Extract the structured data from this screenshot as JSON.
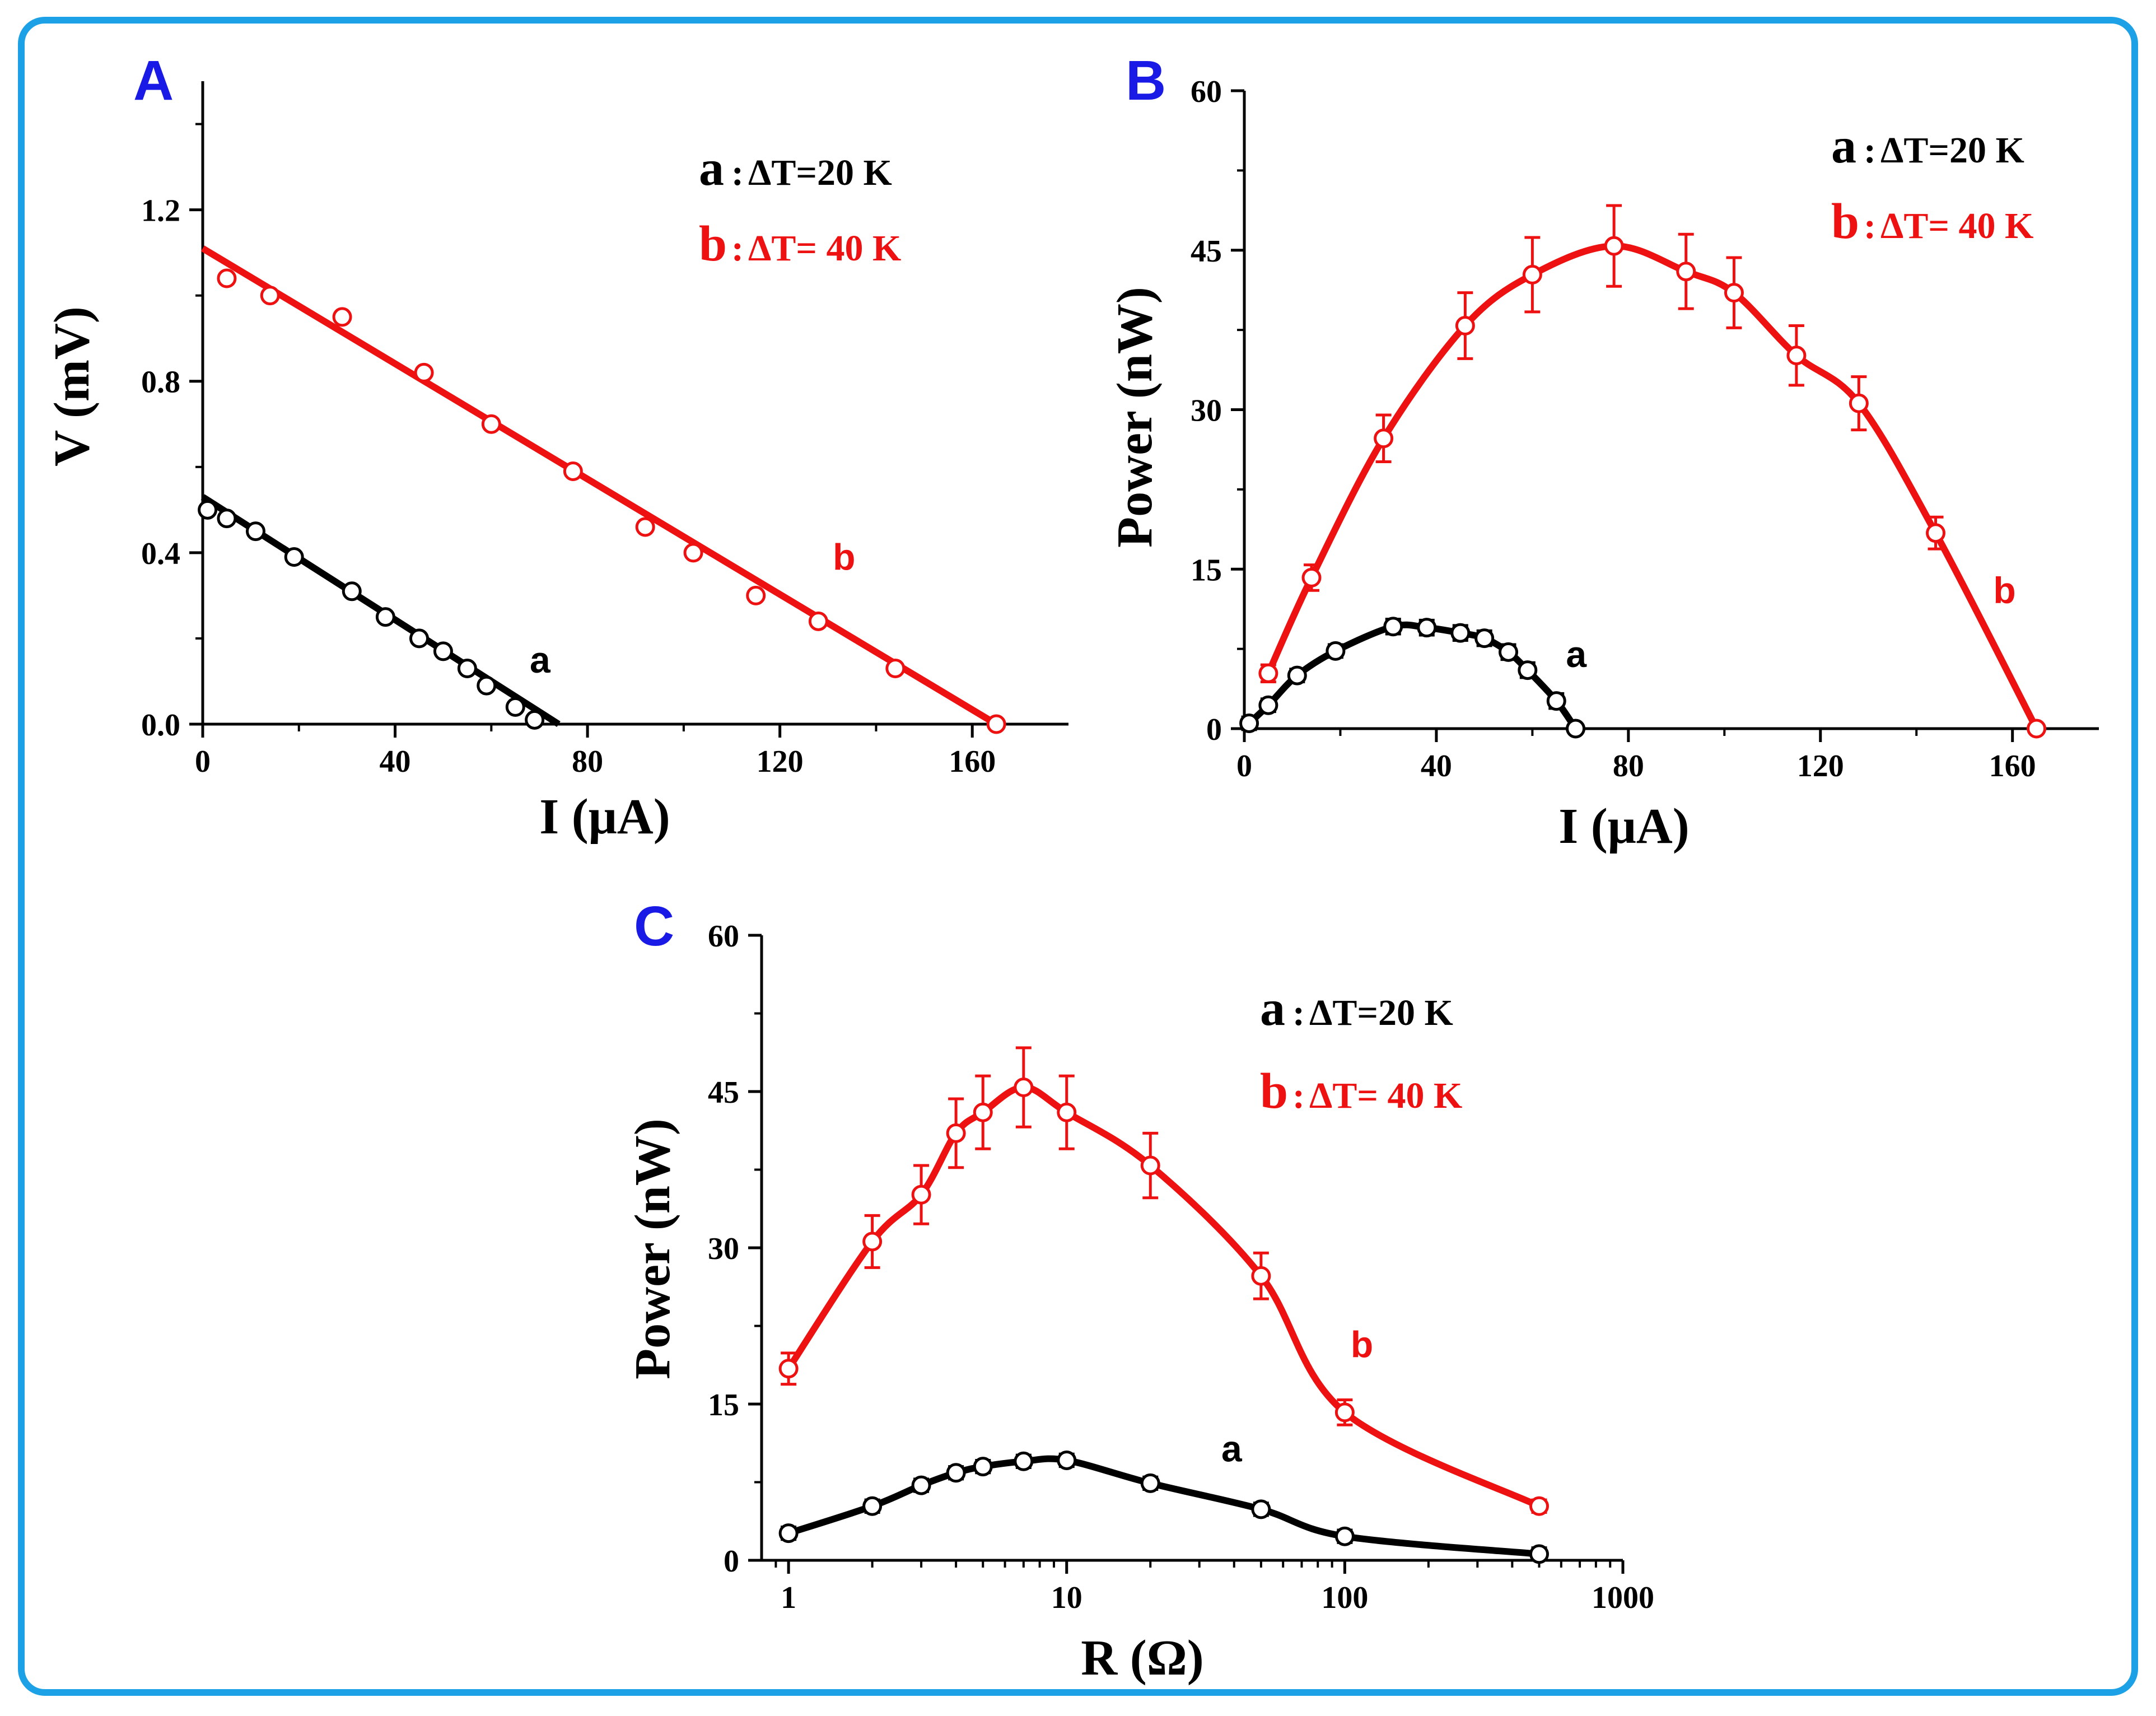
{
  "colors": {
    "frame": "#1ca0e6",
    "panel_letter": "#1a1ae6",
    "black": "#000000",
    "red": "#ee1111"
  },
  "chart_data": [
    {
      "type": "scatter",
      "panel": "A",
      "xlabel": "I (μA)",
      "ylabel": "V (mV)",
      "xlim": [
        0,
        180
      ],
      "ylim": [
        0,
        1.5
      ],
      "xticks": [
        0,
        40,
        80,
        120,
        160
      ],
      "yticks": [
        0.0,
        0.4,
        0.8,
        1.2
      ],
      "xtick_labels": [
        "0",
        "40",
        "80",
        "120",
        "160"
      ],
      "ytick_labels": [
        "0.0",
        "0.4",
        "0.8",
        "1.2"
      ],
      "legend": [
        {
          "key": "a",
          "text": "ΔT=20 K",
          "color": "#000000"
        },
        {
          "key": "b",
          "text": "ΔT= 40 K",
          "color": "#ee1111"
        }
      ],
      "series": [
        {
          "name": "a",
          "color": "#000000",
          "points": [
            [
              1,
              0.5
            ],
            [
              5,
              0.48
            ],
            [
              11,
              0.45
            ],
            [
              19,
              0.39
            ],
            [
              31,
              0.31
            ],
            [
              38,
              0.25
            ],
            [
              45,
              0.2
            ],
            [
              50,
              0.17
            ],
            [
              55,
              0.13
            ],
            [
              59,
              0.09
            ],
            [
              65,
              0.04
            ],
            [
              69,
              0.01
            ]
          ],
          "fit": [
            [
              0,
              0.53
            ],
            [
              74,
              0.0
            ]
          ]
        },
        {
          "name": "b",
          "color": "#ee1111",
          "points": [
            [
              5,
              1.04
            ],
            [
              14,
              1.0
            ],
            [
              29,
              0.95
            ],
            [
              46,
              0.82
            ],
            [
              60,
              0.7
            ],
            [
              77,
              0.59
            ],
            [
              92,
              0.46
            ],
            [
              102,
              0.4
            ],
            [
              115,
              0.3
            ],
            [
              128,
              0.24
            ],
            [
              144,
              0.13
            ],
            [
              165,
              0.0
            ]
          ],
          "fit": [
            [
              0,
              1.11
            ],
            [
              165,
              0.0
            ]
          ]
        }
      ],
      "curve_labels": [
        {
          "text": "a",
          "x": 68,
          "y": 0.12,
          "color": "#000000"
        },
        {
          "text": "b",
          "x": 131,
          "y": 0.36,
          "color": "#ee1111"
        }
      ]
    },
    {
      "type": "line",
      "panel": "B",
      "xlabel": "I (μA)",
      "ylabel": "Power (nW)",
      "xlim": [
        0,
        178
      ],
      "ylim": [
        0,
        60
      ],
      "xticks": [
        0,
        40,
        80,
        120,
        160
      ],
      "yticks": [
        0,
        15,
        30,
        45,
        60
      ],
      "xtick_labels": [
        "0",
        "40",
        "80",
        "120",
        "160"
      ],
      "ytick_labels": [
        "0",
        "15",
        "30",
        "45",
        "60"
      ],
      "legend": [
        {
          "key": "a",
          "text": "ΔT=20 K",
          "color": "#000000"
        },
        {
          "key": "b",
          "text": "ΔT= 40 K",
          "color": "#ee1111"
        }
      ],
      "series": [
        {
          "name": "a",
          "color": "#000000",
          "points": [
            [
              1,
              0.5
            ],
            [
              5,
              2.2
            ],
            [
              11,
              5.0
            ],
            [
              19,
              7.3
            ],
            [
              31,
              9.6
            ],
            [
              38,
              9.5
            ],
            [
              45,
              9.0
            ],
            [
              50,
              8.5
            ],
            [
              55,
              7.2
            ],
            [
              59,
              5.5
            ],
            [
              65,
              2.6
            ],
            [
              69,
              0.0
            ]
          ],
          "errors": [
            0.6,
            0.6,
            0.6,
            0.6,
            0.7,
            0.7,
            0.7,
            0.7,
            0.7,
            0.7,
            0.7,
            0.3
          ]
        },
        {
          "name": "b",
          "color": "#ee1111",
          "points": [
            [
              5,
              5.2
            ],
            [
              14,
              14.2
            ],
            [
              29,
              27.3
            ],
            [
              46,
              37.9
            ],
            [
              60,
              42.7
            ],
            [
              77,
              45.4
            ],
            [
              92,
              43.0
            ],
            [
              102,
              41.0
            ],
            [
              115,
              35.1
            ],
            [
              128,
              30.6
            ],
            [
              144,
              18.4
            ],
            [
              165,
              0.0
            ]
          ],
          "errors": [
            0.8,
            1.2,
            2.2,
            3.1,
            3.5,
            3.8,
            3.5,
            3.3,
            2.8,
            2.5,
            1.5,
            0.2
          ]
        }
      ],
      "curve_labels": [
        {
          "text": "a",
          "x": 67,
          "y": 5.8,
          "color": "#000000"
        },
        {
          "text": "b",
          "x": 156,
          "y": 11.8,
          "color": "#ee1111"
        }
      ]
    },
    {
      "type": "line",
      "panel": "C",
      "xlabel": "R (Ω)",
      "ylabel": "Power (nW)",
      "xscale": "log",
      "xlim": [
        0.8,
        1000
      ],
      "ylim": [
        0,
        60
      ],
      "xticks": [
        1,
        10,
        100,
        1000
      ],
      "yticks": [
        0,
        15,
        30,
        45,
        60
      ],
      "xtick_labels": [
        "1",
        "10",
        "100",
        "1000"
      ],
      "ytick_labels": [
        "0",
        "15",
        "30",
        "45",
        "60"
      ],
      "legend": [
        {
          "key": "a",
          "text": "ΔT=20 K",
          "color": "#000000"
        },
        {
          "key": "b",
          "text": "ΔT= 40 K",
          "color": "#ee1111"
        }
      ],
      "series": [
        {
          "name": "a",
          "color": "#000000",
          "points": [
            [
              1,
              2.6
            ],
            [
              2,
              5.2
            ],
            [
              3,
              7.2
            ],
            [
              4,
              8.4
            ],
            [
              5,
              9.0
            ],
            [
              7,
              9.5
            ],
            [
              10,
              9.6
            ],
            [
              20,
              7.4
            ],
            [
              50,
              4.9
            ],
            [
              100,
              2.3
            ],
            [
              500,
              0.6
            ]
          ],
          "errors": [
            0.6,
            0.6,
            0.6,
            0.6,
            0.6,
            0.6,
            0.6,
            0.6,
            0.6,
            0.6,
            0.6
          ]
        },
        {
          "name": "b",
          "color": "#ee1111",
          "points": [
            [
              1,
              18.4
            ],
            [
              2,
              30.6
            ],
            [
              3,
              35.1
            ],
            [
              4,
              41.0
            ],
            [
              5,
              43.0
            ],
            [
              7,
              45.4
            ],
            [
              10,
              43.0
            ],
            [
              20,
              37.9
            ],
            [
              50,
              27.3
            ],
            [
              100,
              14.2
            ],
            [
              500,
              5.2
            ]
          ],
          "errors": [
            1.5,
            2.5,
            2.8,
            3.3,
            3.5,
            3.8,
            3.5,
            3.1,
            2.2,
            1.2,
            0.6
          ]
        }
      ],
      "curve_labels": [
        {
          "text": "a",
          "x": 36,
          "y": 9.5,
          "color": "#000000"
        },
        {
          "text": "b",
          "x": 105,
          "y": 19.5,
          "color": "#ee1111"
        }
      ]
    }
  ],
  "panels": {
    "A": {
      "letter": "A"
    },
    "B": {
      "letter": "B"
    },
    "C": {
      "letter": "C"
    }
  }
}
